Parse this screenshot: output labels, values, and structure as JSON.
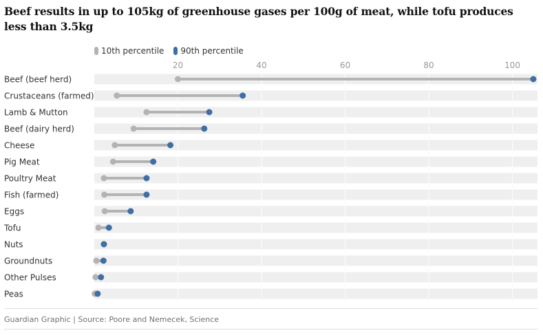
{
  "header": {
    "title": "Beef results in up to 105kg of greenhouse gases per 100g of meat, while tofu produces less than 3.5kg"
  },
  "footer": {
    "source": "Guardian Graphic | Source: Poore and Nemecek, Science"
  },
  "colors": {
    "p10": "#b3b3b3",
    "p90": "#3e6ea4",
    "row_band": "#efefef",
    "tick_text": "#999999",
    "grid": "#dcdcdc"
  },
  "chart_data": {
    "type": "dumbbell",
    "title": "Beef results in up to 105kg of greenhouse gases per 100g of meat, while tofu produces less than 3.5kg",
    "xlim": [
      0,
      106
    ],
    "xticks": [
      20,
      40,
      60,
      80,
      100
    ],
    "grid": true,
    "legend_position": "top-left",
    "series": [
      {
        "name": "10th percentile",
        "color": "#b3b3b3"
      },
      {
        "name": "90th percentile",
        "color": "#3e6ea4"
      }
    ],
    "categories": [
      "Beef (beef herd)",
      "Crustaceans (farmed)",
      "Lamb & Mutton",
      "Beef (dairy herd)",
      "Cheese",
      "Pig Meat",
      "Poultry Meat",
      "Fish (farmed)",
      "Eggs",
      "Tofu",
      "Nuts",
      "Groundnuts",
      "Other Pulses",
      "Peas"
    ],
    "p10": [
      20,
      5.4,
      12.5,
      9.4,
      4.9,
      4.5,
      2.3,
      2.4,
      2.5,
      1.0,
      2.3,
      0.5,
      0.3,
      0.1
    ],
    "p90": [
      105,
      35.5,
      27.5,
      26.3,
      18.2,
      14.1,
      12.5,
      12.5,
      8.7,
      3.5,
      2.3,
      2.2,
      1.6,
      0.8
    ]
  }
}
